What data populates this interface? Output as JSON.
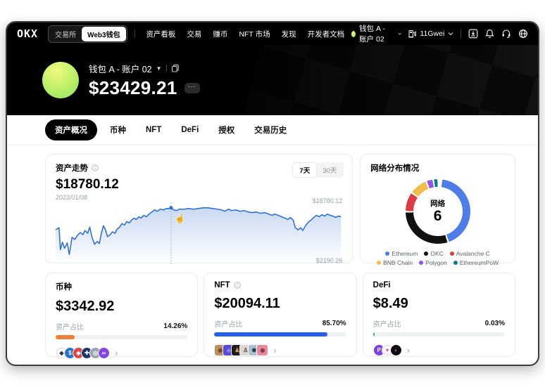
{
  "app": {
    "logo": "OKX"
  },
  "navbar": {
    "toggle": {
      "options": [
        "交易所",
        "Web3钱包"
      ],
      "selected": "Web3钱包"
    },
    "items": [
      "资产看板",
      "交易",
      "赚币",
      "NFT 市场",
      "发现",
      "开发者文档"
    ],
    "wallet_chip": "钱包 A - 账户 02",
    "gas": "11Gwei"
  },
  "hero": {
    "wallet_name": "钱包 A - 账户 02",
    "balance": "$23429.21",
    "more_label": "···"
  },
  "tabs": {
    "items": [
      "资产概况",
      "币种",
      "NFT",
      "DeFi",
      "授权",
      "交易历史"
    ],
    "selected": "资产概况"
  },
  "trend_card": {
    "title": "资产走势",
    "value": "$18780.12",
    "date": "2023/01/08",
    "range_options": [
      "7天",
      "30天"
    ],
    "range_selected": "7天",
    "max_label": "$18780.12",
    "min_label": "$2190.26"
  },
  "network_card": {
    "title": "网络分布情况",
    "center_label": "网络",
    "center_value": "6"
  },
  "chart_data": [
    {
      "type": "line",
      "title": "资产走势 (7天)",
      "current_value": 18780.12,
      "current_date": "2023/01/08",
      "y_max_label": "$18780.12",
      "y_min_label": "$2190.26",
      "y_range": [
        2190.26,
        18780.12
      ],
      "line_color": "#2e6fd6",
      "area_color": "rgba(66,120,210,0.22)",
      "marker": [
        169,
        8
      ],
      "points": [
        [
          0,
          40
        ],
        [
          5,
          37
        ],
        [
          7,
          69
        ],
        [
          10,
          58
        ],
        [
          13,
          67
        ],
        [
          17,
          59
        ],
        [
          20,
          76
        ],
        [
          24,
          51
        ],
        [
          28,
          54
        ],
        [
          32,
          48
        ],
        [
          36,
          44
        ],
        [
          40,
          47
        ],
        [
          43,
          41
        ],
        [
          47,
          45
        ],
        [
          50,
          36
        ],
        [
          53,
          50
        ],
        [
          57,
          61
        ],
        [
          61,
          57
        ],
        [
          64,
          60
        ],
        [
          67,
          45
        ],
        [
          70,
          34
        ],
        [
          73,
          40
        ],
        [
          76,
          50
        ],
        [
          80,
          47
        ],
        [
          83,
          43
        ],
        [
          87,
          45
        ],
        [
          90,
          39
        ],
        [
          94,
          36
        ],
        [
          97,
          31
        ],
        [
          101,
          33
        ],
        [
          104,
          28
        ],
        [
          108,
          30
        ],
        [
          111,
          26
        ],
        [
          115,
          23
        ],
        [
          118,
          25
        ],
        [
          122,
          21
        ],
        [
          125,
          23
        ],
        [
          129,
          19
        ],
        [
          133,
          21
        ],
        [
          137,
          17
        ],
        [
          141,
          14
        ],
        [
          145,
          11
        ],
        [
          149,
          13
        ],
        [
          153,
          10
        ],
        [
          158,
          11
        ],
        [
          162,
          9
        ],
        [
          166,
          9
        ],
        [
          169,
          8
        ],
        [
          173,
          11
        ],
        [
          177,
          12
        ],
        [
          181,
          10
        ],
        [
          188,
          10
        ],
        [
          195,
          9
        ],
        [
          202,
          10
        ],
        [
          209,
          9
        ],
        [
          216,
          8
        ],
        [
          223,
          8
        ],
        [
          230,
          9
        ],
        [
          237,
          10
        ],
        [
          243,
          11
        ],
        [
          248,
          13
        ],
        [
          253,
          10
        ],
        [
          258,
          12
        ],
        [
          264,
          11
        ],
        [
          270,
          13
        ],
        [
          276,
          12
        ],
        [
          282,
          14
        ],
        [
          288,
          15
        ],
        [
          294,
          14
        ],
        [
          300,
          16
        ],
        [
          306,
          15
        ],
        [
          312,
          17
        ],
        [
          317,
          19
        ],
        [
          321,
          17
        ],
        [
          326,
          19
        ],
        [
          331,
          21
        ],
        [
          336,
          23
        ],
        [
          340,
          25
        ],
        [
          344,
          22
        ],
        [
          348,
          26
        ],
        [
          351,
          37
        ],
        [
          355,
          40
        ],
        [
          359,
          37
        ],
        [
          362,
          41
        ],
        [
          366,
          34
        ],
        [
          370,
          29
        ],
        [
          374,
          26
        ],
        [
          378,
          22
        ],
        [
          382,
          19
        ],
        [
          386,
          21
        ],
        [
          390,
          18
        ],
        [
          394,
          20
        ],
        [
          398,
          17
        ],
        [
          402,
          19
        ],
        [
          406,
          20
        ],
        [
          410,
          22
        ],
        [
          414,
          20
        ],
        [
          418,
          21
        ]
      ]
    },
    {
      "type": "donut",
      "title": "网络分布情况",
      "center_label": "网络",
      "center_value": 6,
      "segments": [
        {
          "name": "Ethereum",
          "color": "#4e7de8",
          "from": 8,
          "to": 160,
          "percent": 42.2
        },
        {
          "name": "OKC",
          "color": "#111111",
          "from": 163,
          "to": 268,
          "percent": 29.2
        },
        {
          "name": "Avalanche C",
          "color": "#df3b42",
          "from": 271,
          "to": 304,
          "percent": 9.2
        },
        {
          "name": "BNB Chain",
          "color": "#f2bd4a",
          "from": 307,
          "to": 337,
          "percent": 8.3
        },
        {
          "name": "Polygon",
          "color": "#8d55e8",
          "from": 340,
          "to": 350,
          "percent": 2.8
        },
        {
          "name": "EthereumPoW",
          "color": "#0e7e85",
          "from": 353,
          "to": 359,
          "percent": 1.7
        }
      ],
      "legend_position": "bottom"
    }
  ],
  "summary_cards": [
    {
      "title": "币种",
      "value": "$3342.92",
      "ratio_label": "资产占比",
      "percent": "14.26%",
      "percent_value": 14.26,
      "bar_color": "#f07e36",
      "icon_shape": "circle",
      "icons": [
        {
          "name": "eth-coin-icon",
          "bg": "#ffffff",
          "border": "#d8d8d8",
          "glyph": "◆",
          "fg": "#343444"
        },
        {
          "name": "usdc-coin-icon",
          "bg": "#2775ca",
          "glyph": "$"
        },
        {
          "name": "red-coin-icon",
          "bg": "#e04545",
          "glyph": "◈"
        },
        {
          "name": "navy-coin-icon",
          "bg": "#1d3568",
          "glyph": "✚"
        },
        {
          "name": "gray-coin-icon",
          "bg": "#9aa3ad",
          "glyph": "◎"
        },
        {
          "name": "polygon-coin-icon",
          "bg": "#8247e5",
          "glyph": "∞"
        }
      ]
    },
    {
      "title": "NFT",
      "has_info": true,
      "value": "$20094.11",
      "ratio_label": "资产占比",
      "percent": "85.70%",
      "percent_value": 85.7,
      "bar_color": "#2160e8",
      "icon_shape": "square",
      "icons": [
        {
          "name": "nft-thumb-ape",
          "bg": "#bd8f60",
          "glyph": "◉",
          "fg": "#6e4a22"
        },
        {
          "name": "nft-thumb-blue",
          "bg": "#5a49d6",
          "glyph": "◈",
          "fg": "#8f84ea"
        },
        {
          "name": "nft-thumb-dark",
          "bg": "#1c1c22",
          "glyph": "♟",
          "fg": "#d79a4e"
        },
        {
          "name": "nft-thumb-light",
          "bg": "#dcd8ce",
          "glyph": "♙",
          "fg": "#44403a"
        },
        {
          "name": "nft-thumb-sky",
          "bg": "#a9c0d4",
          "glyph": "♚",
          "fg": "#2e3a46"
        },
        {
          "name": "nft-thumb-pink",
          "bg": "#e8879d",
          "glyph": "◉",
          "fg": "#7e3a49"
        }
      ]
    },
    {
      "title": "DeFi",
      "value": "$8.49",
      "ratio_label": "资产占比",
      "percent": "0.03%",
      "percent_value": 0.03,
      "bar_color": "#12b76a",
      "icon_shape": "circle",
      "icons": [
        {
          "name": "defi-protocol-p-icon",
          "bg": "#7b3fe4",
          "glyph": "P"
        },
        {
          "name": "defi-protocol-pink-icon",
          "bg": "#ffffff",
          "border": "#f0c2d8",
          "glyph": "♥",
          "fg": "#e8539a"
        },
        {
          "name": "defi-protocol-dark-icon",
          "bg": "#0d0d0d",
          "glyph": "◗",
          "fg": "#e85abf"
        }
      ]
    }
  ]
}
